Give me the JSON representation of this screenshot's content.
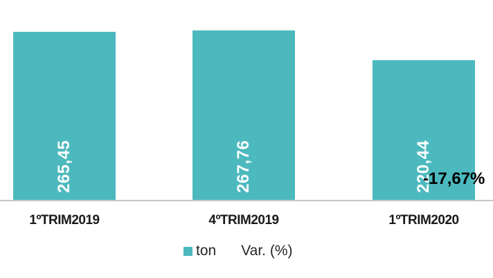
{
  "chart_data": {
    "type": "bar",
    "title": "",
    "xlabel": "",
    "ylabel": "",
    "categories": [
      "1ºTRIM2019",
      "4ºTRIM2019",
      "1ºTRIM2020"
    ],
    "series": [
      {
        "name": "ton",
        "values": [
          265.45,
          267.76,
          220.44
        ],
        "value_labels": [
          "265,45",
          "267,76",
          "220,44"
        ],
        "color": "#4CB9BE",
        "value_label_rotation": -90
      },
      {
        "name": "Var. (%)",
        "values": [
          null,
          null,
          -17.67
        ],
        "value_labels": [
          "",
          "",
          "-17,67%"
        ],
        "color": "",
        "marker": "none"
      }
    ],
    "ylim": [
      0,
      316
    ],
    "grid": false,
    "y_axis_visible": false,
    "legend_position": "bottom"
  },
  "legend": {
    "items": [
      {
        "label": "ton",
        "marker": "square",
        "marker_color": "#4CB9BE"
      },
      {
        "label": "Var. (%)",
        "marker": "none",
        "marker_color": ""
      }
    ]
  },
  "colors": {
    "bar": "#4CB9BE",
    "axis_line": "#C5C5C5",
    "bar_value_label": "#FFFFFF",
    "annotation_text": "#000000",
    "category_label": "#1A1A1A",
    "background": "#FFFFFF"
  }
}
